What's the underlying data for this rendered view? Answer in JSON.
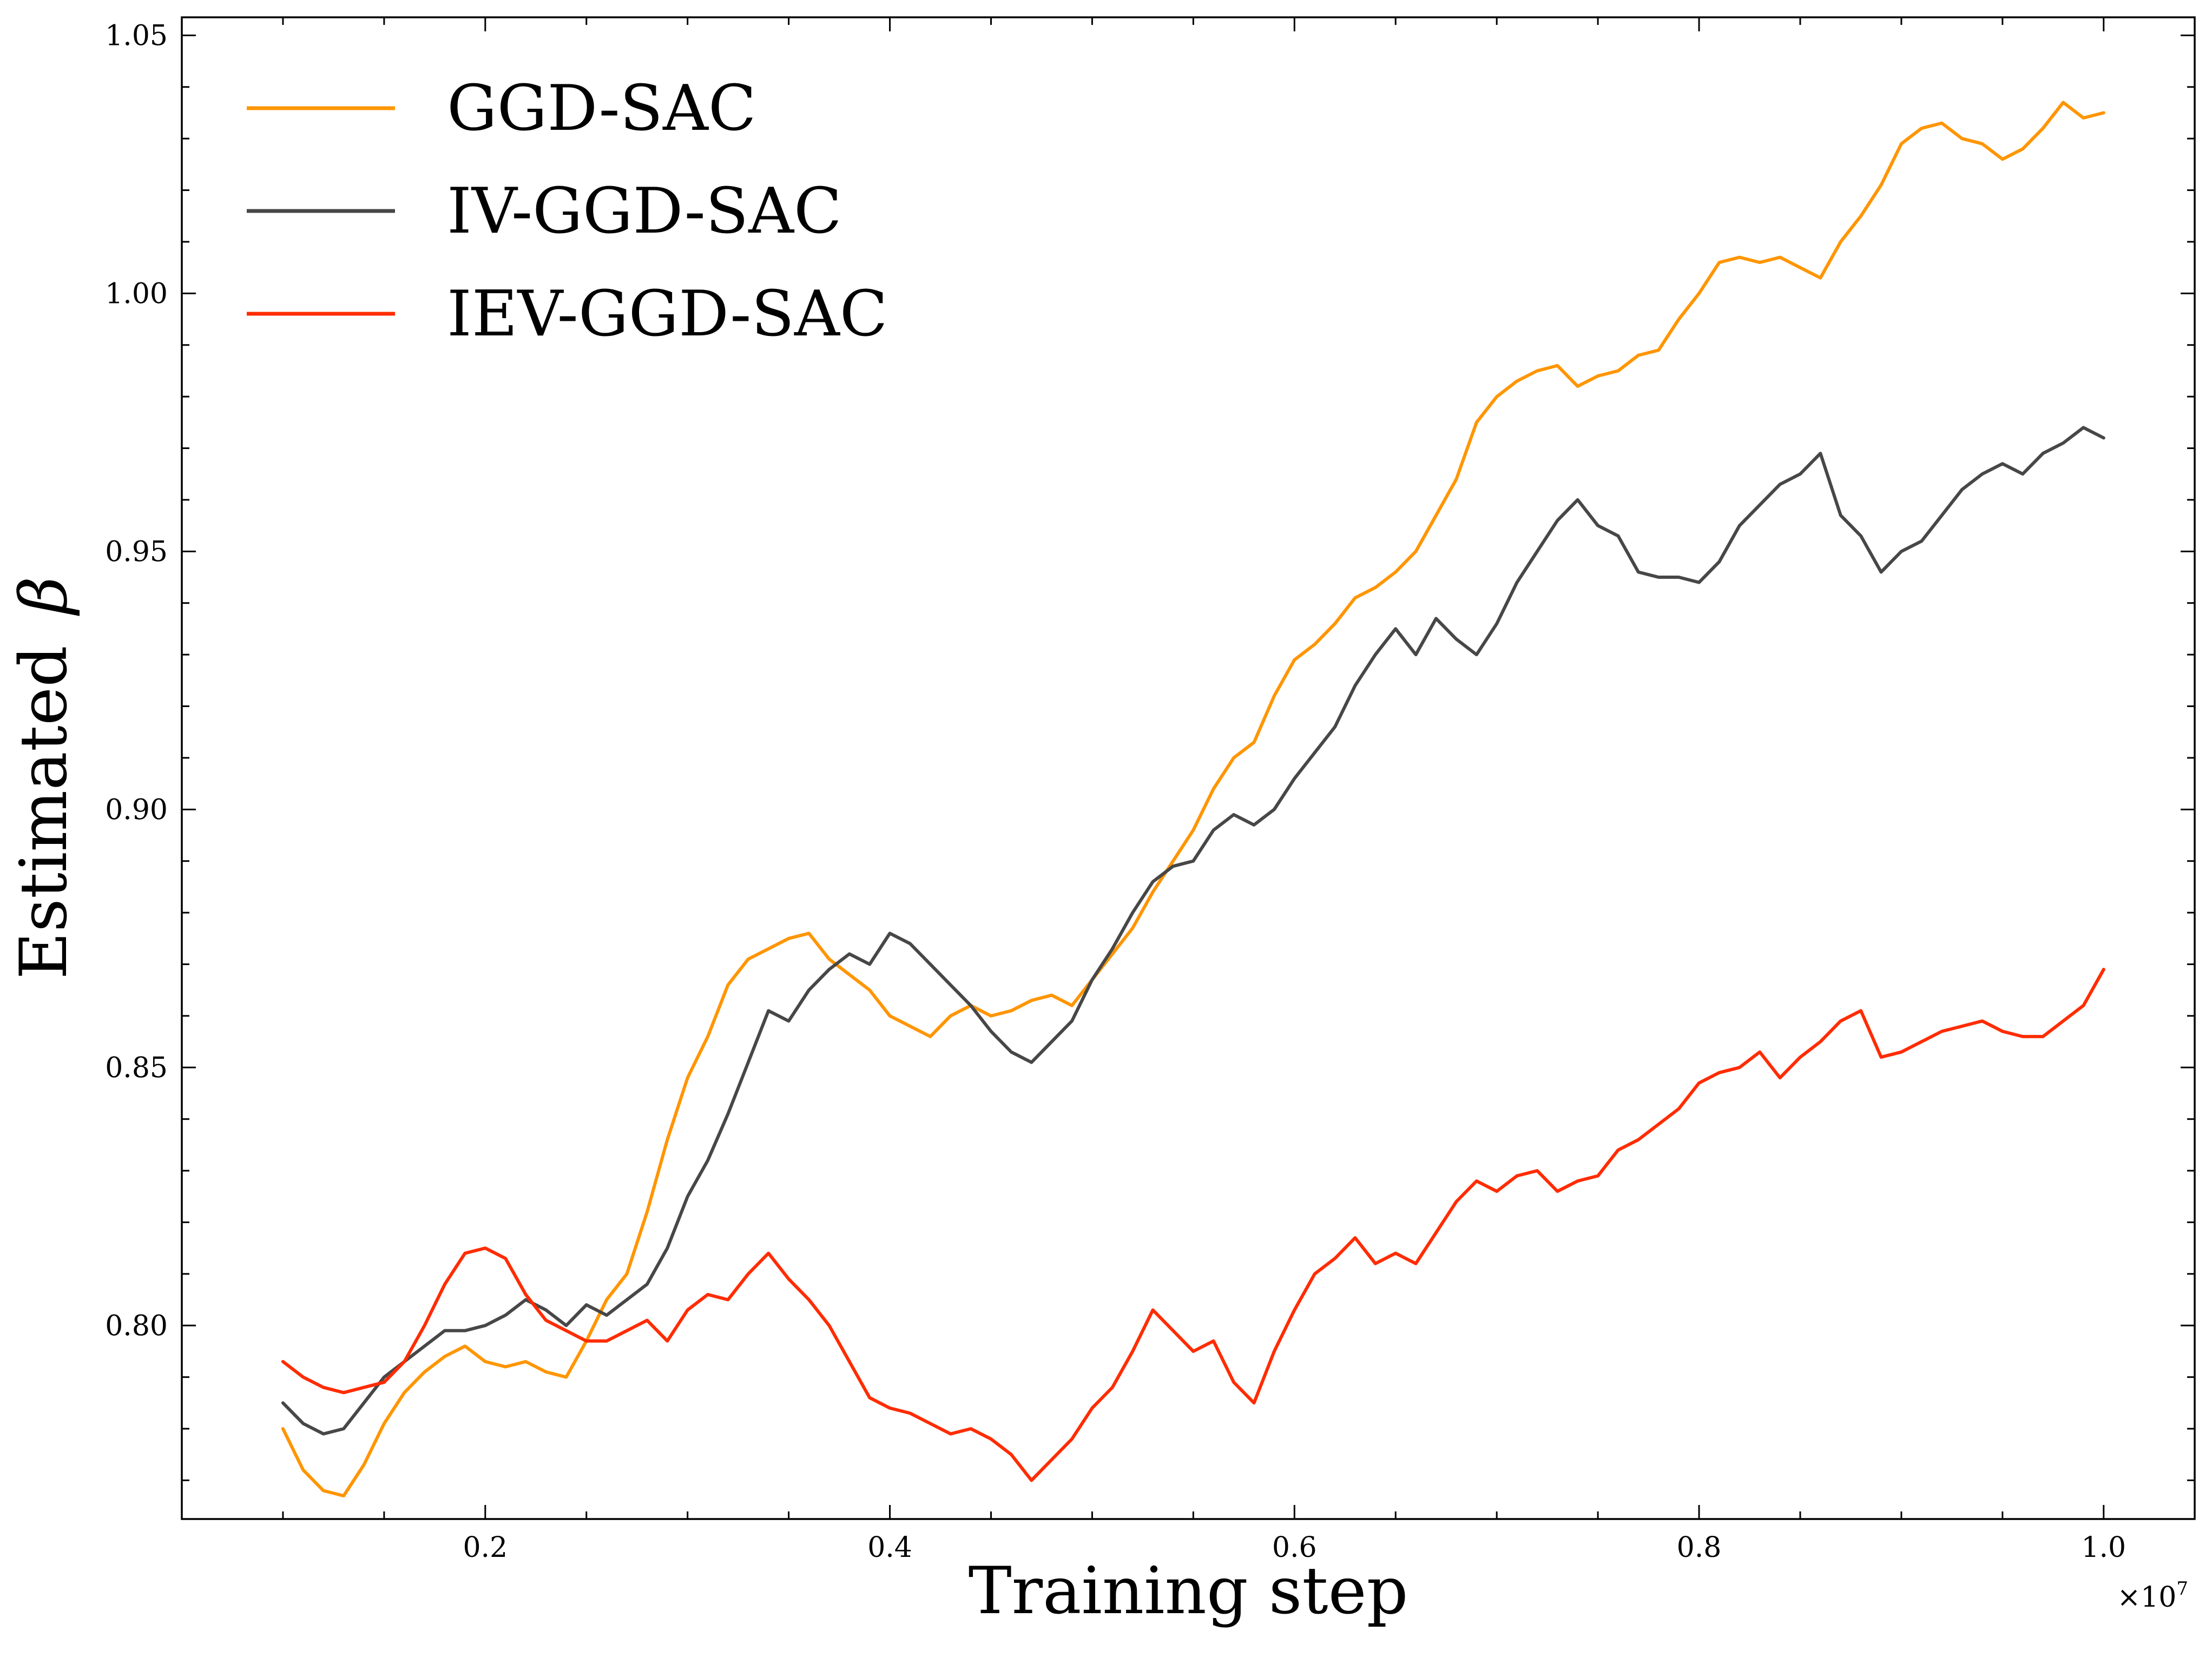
{
  "chart_data": {
    "type": "line",
    "title": "",
    "xlabel": "Training step",
    "ylabel": "Estimated β",
    "ylabel_prefix": "Estimated",
    "ylabel_symbol": "β",
    "x_offset_label": "×10",
    "x_offset_exponent": "7",
    "x_scale": 10000000,
    "xlim": [
      0.05,
      1.045
    ],
    "ylim": [
      0.7625,
      1.0535
    ],
    "x_ticks": [
      0.2,
      0.4,
      0.6,
      0.8,
      1.0
    ],
    "x_tick_labels": [
      "0.2",
      "0.4",
      "0.6",
      "0.8",
      "1.0"
    ],
    "y_ticks": [
      0.8,
      0.85,
      0.9,
      0.95,
      1.0,
      1.05
    ],
    "y_tick_labels": [
      "0.80",
      "0.85",
      "0.90",
      "0.95",
      "1.00",
      "1.05"
    ],
    "legend_position": "top-left",
    "grid": false,
    "series": [
      {
        "name": "GGD-SAC",
        "color": "#FF9500",
        "points": [
          [
            0.1,
            0.78
          ],
          [
            0.11,
            0.772
          ],
          [
            0.12,
            0.768
          ],
          [
            0.13,
            0.767
          ],
          [
            0.14,
            0.773
          ],
          [
            0.15,
            0.781
          ],
          [
            0.16,
            0.787
          ],
          [
            0.17,
            0.791
          ],
          [
            0.18,
            0.794
          ],
          [
            0.19,
            0.796
          ],
          [
            0.2,
            0.793
          ],
          [
            0.21,
            0.792
          ],
          [
            0.22,
            0.793
          ],
          [
            0.23,
            0.791
          ],
          [
            0.24,
            0.79
          ],
          [
            0.25,
            0.797
          ],
          [
            0.26,
            0.805
          ],
          [
            0.27,
            0.81
          ],
          [
            0.28,
            0.822
          ],
          [
            0.29,
            0.836
          ],
          [
            0.3,
            0.848
          ],
          [
            0.31,
            0.856
          ],
          [
            0.32,
            0.866
          ],
          [
            0.33,
            0.871
          ],
          [
            0.34,
            0.873
          ],
          [
            0.35,
            0.875
          ],
          [
            0.36,
            0.876
          ],
          [
            0.37,
            0.871
          ],
          [
            0.38,
            0.868
          ],
          [
            0.39,
            0.865
          ],
          [
            0.4,
            0.86
          ],
          [
            0.41,
            0.858
          ],
          [
            0.42,
            0.856
          ],
          [
            0.43,
            0.86
          ],
          [
            0.44,
            0.862
          ],
          [
            0.45,
            0.86
          ],
          [
            0.46,
            0.861
          ],
          [
            0.47,
            0.863
          ],
          [
            0.48,
            0.864
          ],
          [
            0.49,
            0.862
          ],
          [
            0.5,
            0.867
          ],
          [
            0.51,
            0.872
          ],
          [
            0.52,
            0.877
          ],
          [
            0.53,
            0.884
          ],
          [
            0.54,
            0.89
          ],
          [
            0.55,
            0.896
          ],
          [
            0.56,
            0.904
          ],
          [
            0.57,
            0.91
          ],
          [
            0.58,
            0.913
          ],
          [
            0.59,
            0.922
          ],
          [
            0.6,
            0.929
          ],
          [
            0.61,
            0.932
          ],
          [
            0.62,
            0.936
          ],
          [
            0.63,
            0.941
          ],
          [
            0.64,
            0.943
          ],
          [
            0.65,
            0.946
          ],
          [
            0.66,
            0.95
          ],
          [
            0.67,
            0.957
          ],
          [
            0.68,
            0.964
          ],
          [
            0.69,
            0.975
          ],
          [
            0.7,
            0.98
          ],
          [
            0.71,
            0.983
          ],
          [
            0.72,
            0.985
          ],
          [
            0.73,
            0.986
          ],
          [
            0.74,
            0.982
          ],
          [
            0.75,
            0.984
          ],
          [
            0.76,
            0.985
          ],
          [
            0.77,
            0.988
          ],
          [
            0.78,
            0.989
          ],
          [
            0.79,
            0.995
          ],
          [
            0.8,
            1.0
          ],
          [
            0.81,
            1.006
          ],
          [
            0.82,
            1.007
          ],
          [
            0.83,
            1.006
          ],
          [
            0.84,
            1.007
          ],
          [
            0.85,
            1.005
          ],
          [
            0.86,
            1.003
          ],
          [
            0.87,
            1.01
          ],
          [
            0.88,
            1.015
          ],
          [
            0.89,
            1.021
          ],
          [
            0.9,
            1.029
          ],
          [
            0.91,
            1.032
          ],
          [
            0.92,
            1.033
          ],
          [
            0.93,
            1.03
          ],
          [
            0.94,
            1.029
          ],
          [
            0.95,
            1.026
          ],
          [
            0.96,
            1.028
          ],
          [
            0.97,
            1.032
          ],
          [
            0.98,
            1.037
          ],
          [
            0.99,
            1.034
          ],
          [
            1.0,
            1.035
          ]
        ]
      },
      {
        "name": "IV-GGD-SAC",
        "color": "#474747",
        "points": [
          [
            0.1,
            0.785
          ],
          [
            0.11,
            0.781
          ],
          [
            0.12,
            0.779
          ],
          [
            0.13,
            0.78
          ],
          [
            0.14,
            0.785
          ],
          [
            0.15,
            0.79
          ],
          [
            0.16,
            0.793
          ],
          [
            0.17,
            0.796
          ],
          [
            0.18,
            0.799
          ],
          [
            0.19,
            0.799
          ],
          [
            0.2,
            0.8
          ],
          [
            0.21,
            0.802
          ],
          [
            0.22,
            0.805
          ],
          [
            0.23,
            0.803
          ],
          [
            0.24,
            0.8
          ],
          [
            0.25,
            0.804
          ],
          [
            0.26,
            0.802
          ],
          [
            0.27,
            0.805
          ],
          [
            0.28,
            0.808
          ],
          [
            0.29,
            0.815
          ],
          [
            0.3,
            0.825
          ],
          [
            0.31,
            0.832
          ],
          [
            0.32,
            0.841
          ],
          [
            0.33,
            0.851
          ],
          [
            0.34,
            0.861
          ],
          [
            0.35,
            0.859
          ],
          [
            0.36,
            0.865
          ],
          [
            0.37,
            0.869
          ],
          [
            0.38,
            0.872
          ],
          [
            0.39,
            0.87
          ],
          [
            0.4,
            0.876
          ],
          [
            0.41,
            0.874
          ],
          [
            0.42,
            0.87
          ],
          [
            0.43,
            0.866
          ],
          [
            0.44,
            0.862
          ],
          [
            0.45,
            0.857
          ],
          [
            0.46,
            0.853
          ],
          [
            0.47,
            0.851
          ],
          [
            0.48,
            0.855
          ],
          [
            0.49,
            0.859
          ],
          [
            0.5,
            0.867
          ],
          [
            0.51,
            0.873
          ],
          [
            0.52,
            0.88
          ],
          [
            0.53,
            0.886
          ],
          [
            0.54,
            0.889
          ],
          [
            0.55,
            0.89
          ],
          [
            0.56,
            0.896
          ],
          [
            0.57,
            0.899
          ],
          [
            0.58,
            0.897
          ],
          [
            0.59,
            0.9
          ],
          [
            0.6,
            0.906
          ],
          [
            0.61,
            0.911
          ],
          [
            0.62,
            0.916
          ],
          [
            0.63,
            0.924
          ],
          [
            0.64,
            0.93
          ],
          [
            0.65,
            0.935
          ],
          [
            0.66,
            0.93
          ],
          [
            0.67,
            0.937
          ],
          [
            0.68,
            0.933
          ],
          [
            0.69,
            0.93
          ],
          [
            0.7,
            0.936
          ],
          [
            0.71,
            0.944
          ],
          [
            0.72,
            0.95
          ],
          [
            0.73,
            0.956
          ],
          [
            0.74,
            0.96
          ],
          [
            0.75,
            0.955
          ],
          [
            0.76,
            0.953
          ],
          [
            0.77,
            0.946
          ],
          [
            0.78,
            0.945
          ],
          [
            0.79,
            0.945
          ],
          [
            0.8,
            0.944
          ],
          [
            0.81,
            0.948
          ],
          [
            0.82,
            0.955
          ],
          [
            0.83,
            0.959
          ],
          [
            0.84,
            0.963
          ],
          [
            0.85,
            0.965
          ],
          [
            0.86,
            0.969
          ],
          [
            0.87,
            0.957
          ],
          [
            0.88,
            0.953
          ],
          [
            0.89,
            0.946
          ],
          [
            0.9,
            0.95
          ],
          [
            0.91,
            0.952
          ],
          [
            0.92,
            0.957
          ],
          [
            0.93,
            0.962
          ],
          [
            0.94,
            0.965
          ],
          [
            0.95,
            0.967
          ],
          [
            0.96,
            0.965
          ],
          [
            0.97,
            0.969
          ],
          [
            0.98,
            0.971
          ],
          [
            0.99,
            0.974
          ],
          [
            1.0,
            0.972
          ]
        ]
      },
      {
        "name": "IEV-GGD-SAC",
        "color": "#FF2C00",
        "points": [
          [
            0.1,
            0.793
          ],
          [
            0.11,
            0.79
          ],
          [
            0.12,
            0.788
          ],
          [
            0.13,
            0.787
          ],
          [
            0.14,
            0.788
          ],
          [
            0.15,
            0.789
          ],
          [
            0.16,
            0.793
          ],
          [
            0.17,
            0.8
          ],
          [
            0.18,
            0.808
          ],
          [
            0.19,
            0.814
          ],
          [
            0.2,
            0.815
          ],
          [
            0.21,
            0.813
          ],
          [
            0.22,
            0.806
          ],
          [
            0.23,
            0.801
          ],
          [
            0.24,
            0.799
          ],
          [
            0.25,
            0.797
          ],
          [
            0.26,
            0.797
          ],
          [
            0.27,
            0.799
          ],
          [
            0.28,
            0.801
          ],
          [
            0.29,
            0.797
          ],
          [
            0.3,
            0.803
          ],
          [
            0.31,
            0.806
          ],
          [
            0.32,
            0.805
          ],
          [
            0.33,
            0.81
          ],
          [
            0.34,
            0.814
          ],
          [
            0.35,
            0.809
          ],
          [
            0.36,
            0.805
          ],
          [
            0.37,
            0.8
          ],
          [
            0.38,
            0.793
          ],
          [
            0.39,
            0.786
          ],
          [
            0.4,
            0.784
          ],
          [
            0.41,
            0.783
          ],
          [
            0.42,
            0.781
          ],
          [
            0.43,
            0.779
          ],
          [
            0.44,
            0.78
          ],
          [
            0.45,
            0.778
          ],
          [
            0.46,
            0.775
          ],
          [
            0.47,
            0.77
          ],
          [
            0.48,
            0.774
          ],
          [
            0.49,
            0.778
          ],
          [
            0.5,
            0.784
          ],
          [
            0.51,
            0.788
          ],
          [
            0.52,
            0.795
          ],
          [
            0.53,
            0.803
          ],
          [
            0.54,
            0.799
          ],
          [
            0.55,
            0.795
          ],
          [
            0.56,
            0.797
          ],
          [
            0.57,
            0.789
          ],
          [
            0.58,
            0.785
          ],
          [
            0.59,
            0.795
          ],
          [
            0.6,
            0.803
          ],
          [
            0.61,
            0.81
          ],
          [
            0.62,
            0.813
          ],
          [
            0.63,
            0.817
          ],
          [
            0.64,
            0.812
          ],
          [
            0.65,
            0.814
          ],
          [
            0.66,
            0.812
          ],
          [
            0.67,
            0.818
          ],
          [
            0.68,
            0.824
          ],
          [
            0.69,
            0.828
          ],
          [
            0.7,
            0.826
          ],
          [
            0.71,
            0.829
          ],
          [
            0.72,
            0.83
          ],
          [
            0.73,
            0.826
          ],
          [
            0.74,
            0.828
          ],
          [
            0.75,
            0.829
          ],
          [
            0.76,
            0.834
          ],
          [
            0.77,
            0.836
          ],
          [
            0.78,
            0.839
          ],
          [
            0.79,
            0.842
          ],
          [
            0.8,
            0.847
          ],
          [
            0.81,
            0.849
          ],
          [
            0.82,
            0.85
          ],
          [
            0.83,
            0.853
          ],
          [
            0.84,
            0.848
          ],
          [
            0.85,
            0.852
          ],
          [
            0.86,
            0.855
          ],
          [
            0.87,
            0.859
          ],
          [
            0.88,
            0.861
          ],
          [
            0.89,
            0.852
          ],
          [
            0.9,
            0.853
          ],
          [
            0.91,
            0.855
          ],
          [
            0.92,
            0.857
          ],
          [
            0.93,
            0.858
          ],
          [
            0.94,
            0.859
          ],
          [
            0.95,
            0.857
          ],
          [
            0.96,
            0.856
          ],
          [
            0.97,
            0.856
          ],
          [
            0.98,
            0.859
          ],
          [
            0.99,
            0.862
          ],
          [
            1.0,
            0.869
          ]
        ]
      }
    ]
  }
}
